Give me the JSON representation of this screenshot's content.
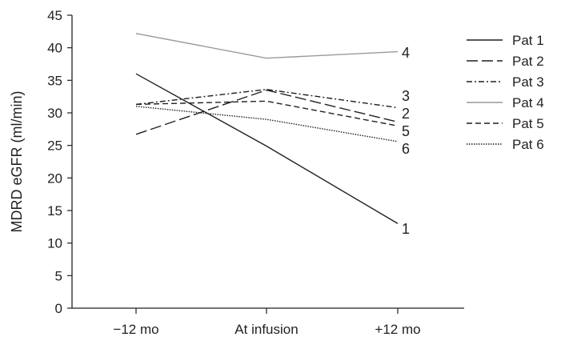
{
  "chart_data": {
    "type": "line",
    "categories": [
      "−12 mo",
      "At infusion",
      "+12 mo"
    ],
    "ylabel": "MDRD eGFR (ml/min)",
    "xlabel": "",
    "ylim": [
      0,
      45
    ],
    "yticks": [
      0,
      5,
      10,
      15,
      20,
      25,
      30,
      35,
      40,
      45
    ],
    "grid": false,
    "legend_placement": "right",
    "series": [
      {
        "name": "Pat 1",
        "end_label": "1",
        "values": [
          36.0,
          24.9,
          13.0
        ],
        "color": "#231f20",
        "dash": "solid"
      },
      {
        "name": "Pat 2",
        "end_label": "2",
        "values": [
          26.7,
          33.5,
          28.6
        ],
        "color": "#231f20",
        "dash": "long-dash"
      },
      {
        "name": "Pat 3",
        "end_label": "3",
        "values": [
          31.3,
          33.6,
          30.8
        ],
        "color": "#231f20",
        "dash": "dash-dot"
      },
      {
        "name": "Pat 4",
        "end_label": "4",
        "values": [
          42.2,
          38.4,
          39.4
        ],
        "color": "#9a9a9a",
        "dash": "solid"
      },
      {
        "name": "Pat 5",
        "end_label": "5",
        "values": [
          31.3,
          31.8,
          28.0
        ],
        "color": "#231f20",
        "dash": "dash"
      },
      {
        "name": "Pat 6",
        "end_label": "6",
        "values": [
          31.0,
          29.0,
          25.6
        ],
        "color": "#231f20",
        "dash": "dotted"
      }
    ]
  }
}
